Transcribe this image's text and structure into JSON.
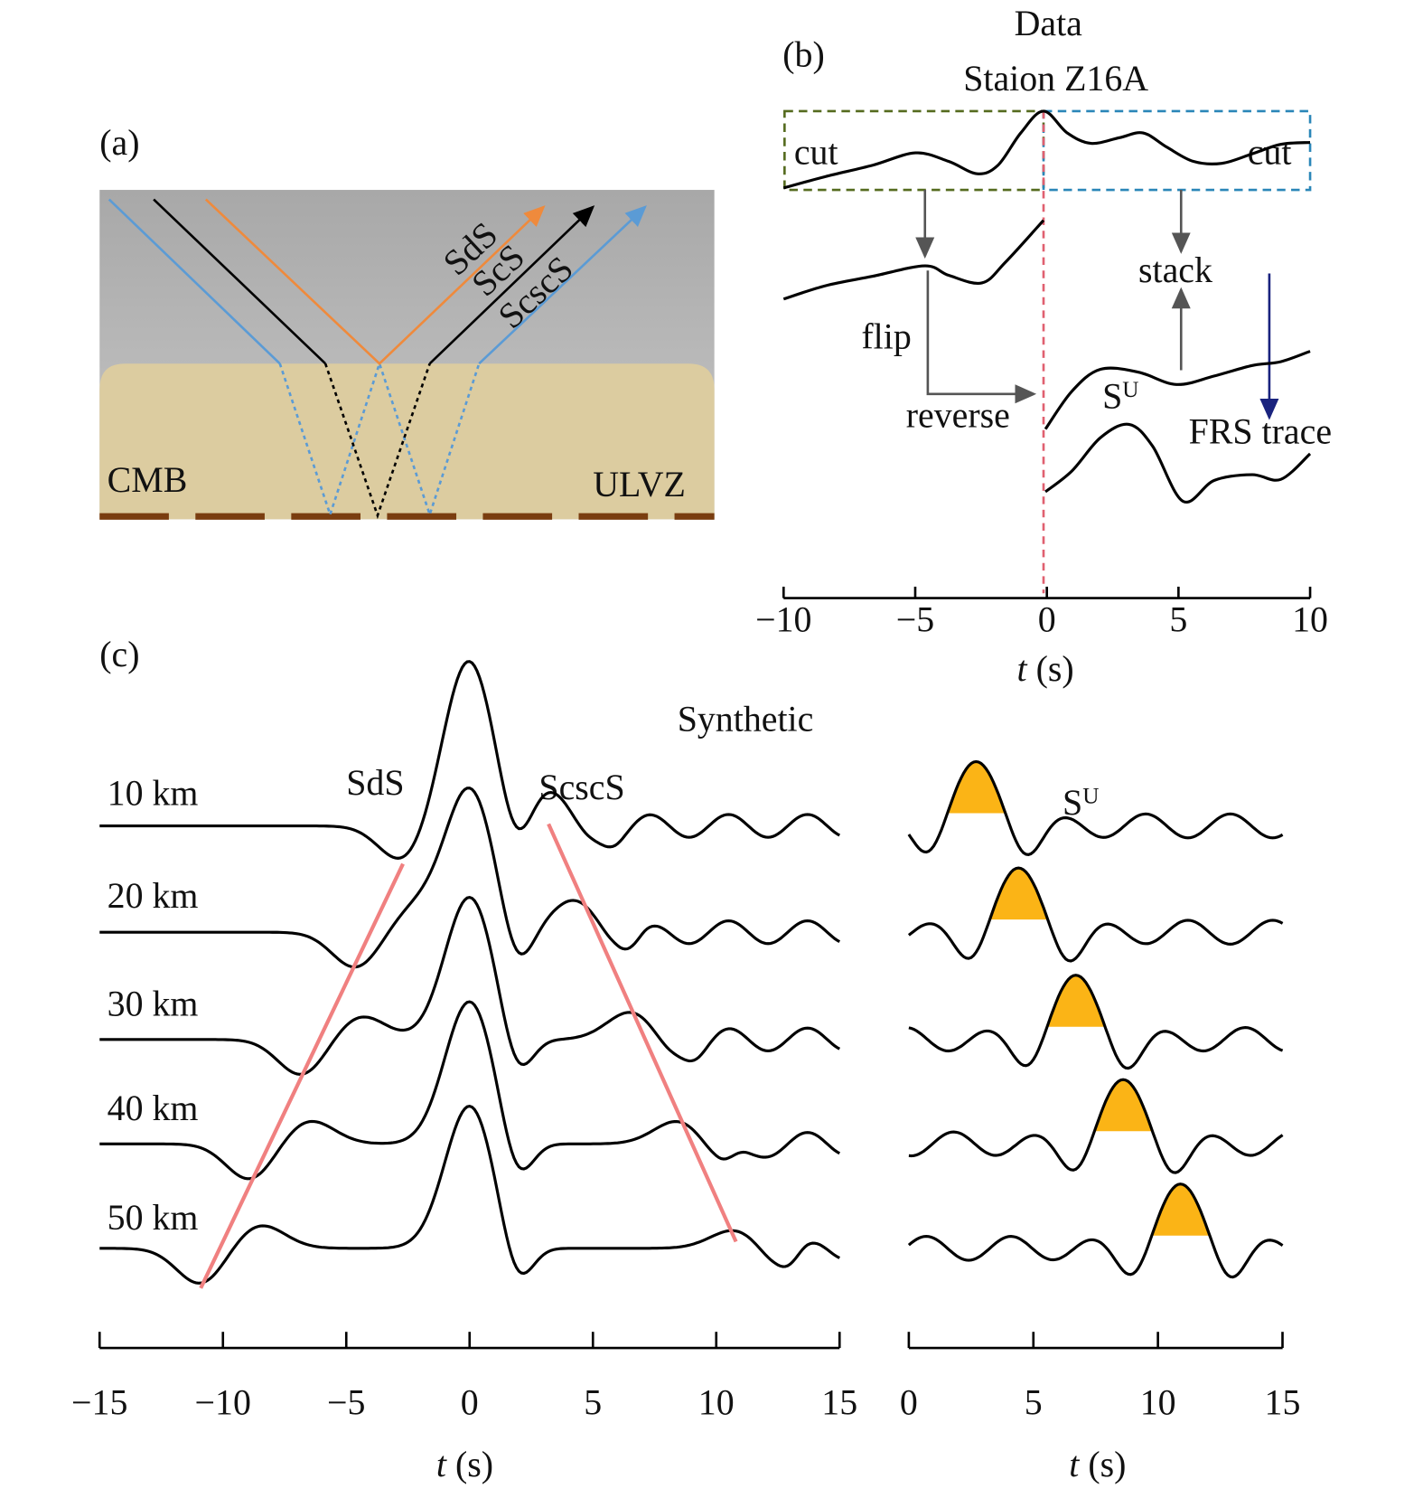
{
  "panel_a": {
    "label": "(a)",
    "ray_labels": [
      "SdS",
      "ScS",
      "ScscS"
    ],
    "region_labels": {
      "left": "CMB",
      "right": "ULVZ"
    },
    "colors": {
      "sds": "#ef8a3c",
      "scs": "#000000",
      "scscs": "#5b9bd5",
      "mantle": "#b5b5b5",
      "ulvz": "#dccca0",
      "cmb": "#7a3d10"
    }
  },
  "panel_b": {
    "label": "(b)",
    "title": "Data",
    "subtitle": "Staion Z16A",
    "annotations": {
      "cut_left": "cut",
      "cut_right": "cut",
      "flip": "flip",
      "reverse": "reverse",
      "stack": "stack",
      "su": "S",
      "su_sup": "U",
      "frs": "FRS trace"
    },
    "xaxis": {
      "label_italic": "t",
      "label_unit": " (s)",
      "ticks": [
        "−10",
        "−5",
        "0",
        "5",
        "10"
      ],
      "range": [
        -10,
        10
      ]
    },
    "colors": {
      "cut_left_box": "#556b1f",
      "cut_right_box": "#2a86b8",
      "zero_line": "#e06070",
      "arrow": "#555555",
      "frs_arrow": "#1a237e"
    }
  },
  "panel_c": {
    "label": "(c)",
    "title": "Synthetic",
    "phase_labels": {
      "sds": "SdS",
      "scscs": "ScscS",
      "su": "S",
      "su_sup": "U"
    },
    "traces": [
      {
        "depth": "10 km",
        "sds_time": -2.7,
        "scscs_time": 3.2,
        "su_time": 2.7
      },
      {
        "depth": "20 km",
        "sds_time": -4.6,
        "scscs_time": 4.3,
        "su_time": 4.4
      },
      {
        "depth": "30 km",
        "sds_time": -6.8,
        "scscs_time": 6.6,
        "su_time": 6.7
      },
      {
        "depth": "40 km",
        "sds_time": -8.9,
        "scscs_time": 8.5,
        "su_time": 8.6
      },
      {
        "depth": "50 km",
        "sds_time": -10.9,
        "scscs_time": 10.8,
        "su_time": 10.9
      }
    ],
    "left_axis": {
      "label_italic": "t",
      "label_unit": " (s)",
      "ticks": [
        "−15",
        "−10",
        "−5",
        "0",
        "5",
        "10",
        "15"
      ],
      "range": [
        -15,
        15
      ]
    },
    "right_axis": {
      "label_italic": "t",
      "label_unit": " (s)",
      "ticks": [
        "0",
        "5",
        "10",
        "15"
      ],
      "range": [
        0,
        15
      ]
    },
    "colors": {
      "moveout_line": "#f08080",
      "su_fill": "#fbb416"
    }
  }
}
